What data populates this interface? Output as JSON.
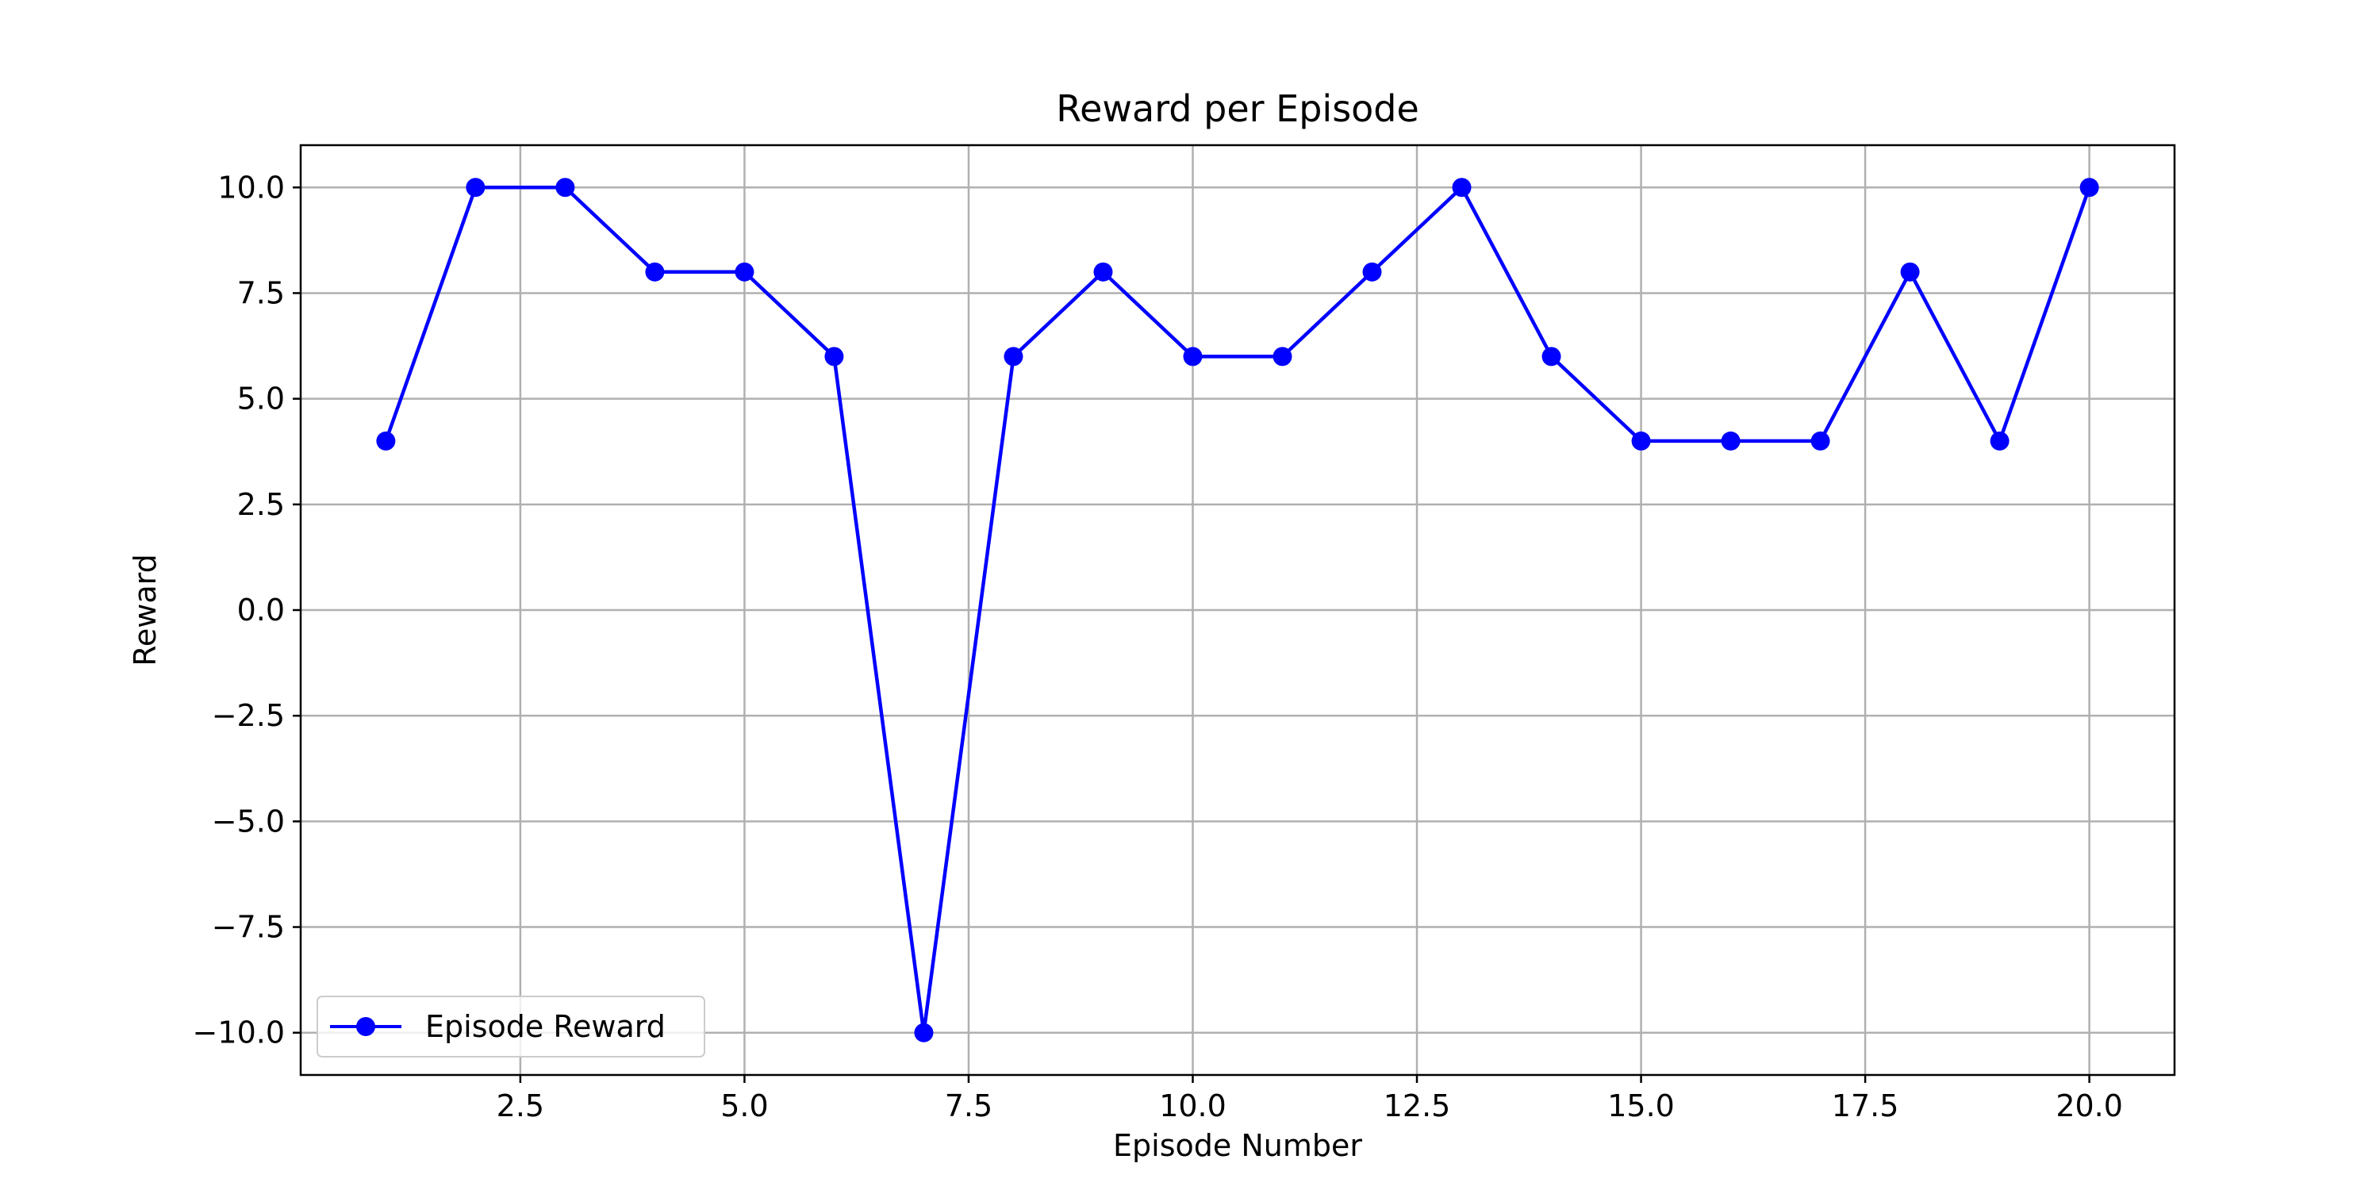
{
  "chart_data": {
    "type": "line",
    "title": "Reward per Episode",
    "xlabel": "Episode Number",
    "ylabel": "Reward",
    "xlim": [
      0.05,
      20.95
    ],
    "ylim": [
      -11,
      11
    ],
    "xticks": [
      2.5,
      5.0,
      7.5,
      10.0,
      12.5,
      15.0,
      17.5,
      20.0
    ],
    "xtick_labels": [
      "2.5",
      "5.0",
      "7.5",
      "10.0",
      "12.5",
      "15.0",
      "17.5",
      "20.0"
    ],
    "yticks": [
      -10.0,
      -7.5,
      -5.0,
      -2.5,
      0.0,
      2.5,
      5.0,
      7.5,
      10.0
    ],
    "ytick_labels": [
      "−10.0",
      "−7.5",
      "−5.0",
      "−2.5",
      "0.0",
      "2.5",
      "5.0",
      "7.5",
      "10.0"
    ],
    "grid": true,
    "legend_position": "lower-left",
    "series": [
      {
        "name": "Episode Reward",
        "color": "#0000ff",
        "marker": "circle",
        "x": [
          1,
          2,
          3,
          4,
          5,
          6,
          7,
          8,
          9,
          10,
          11,
          12,
          13,
          14,
          15,
          16,
          17,
          18,
          19,
          20
        ],
        "y": [
          4,
          10,
          10,
          8,
          8,
          6,
          -10,
          6,
          8,
          6,
          6,
          8,
          10,
          6,
          4,
          4,
          4,
          8,
          4,
          10
        ]
      }
    ]
  }
}
